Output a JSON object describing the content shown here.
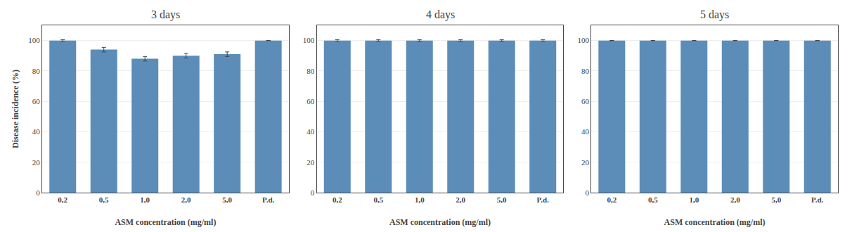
{
  "chart_data": [
    {
      "type": "bar",
      "title": "3 days",
      "categories": [
        "0,2",
        "0,5",
        "1,0",
        "2,0",
        "5,0",
        "P.d."
      ],
      "values": [
        100,
        94,
        88,
        90,
        91,
        100
      ],
      "errors": [
        0.5,
        1.5,
        1.5,
        1.5,
        1.5,
        0.0
      ],
      "color": "#5b8db8",
      "xlabel": "ASM concentration (mg/ml)",
      "ylabel": "Disease incidence (%)",
      "ylim": [
        0,
        110
      ],
      "yticks": [
        0,
        20,
        40,
        60,
        80,
        100
      ],
      "grid": true
    },
    {
      "type": "bar",
      "title": "4 days",
      "categories": [
        "0,2",
        "0,5",
        "1,0",
        "2,0",
        "5,0",
        "P.d."
      ],
      "values": [
        100,
        100,
        100,
        100,
        100,
        100
      ],
      "errors": [
        0.5,
        0.5,
        0.5,
        0.5,
        0.5,
        0.5
      ],
      "color": "#5b8db8",
      "xlabel": "ASM concentration (mg/ml)",
      "ylim": [
        0,
        110
      ],
      "yticks": [
        0,
        20,
        40,
        60,
        80,
        100
      ],
      "grid": true
    },
    {
      "type": "bar",
      "title": "5 days",
      "categories": [
        "0,2",
        "0,5",
        "1,0",
        "2,0",
        "5,0",
        "P.d."
      ],
      "values": [
        100,
        100,
        100,
        100,
        100,
        100
      ],
      "errors": [
        0.0,
        0.0,
        0.0,
        0.0,
        0.0,
        0.0
      ],
      "color": "#5b8db8",
      "xlabel": "ASM concentration (mg/ml)",
      "ylim": [
        0,
        110
      ],
      "yticks": [
        0,
        20,
        40,
        60,
        80,
        100
      ],
      "grid": true
    }
  ]
}
